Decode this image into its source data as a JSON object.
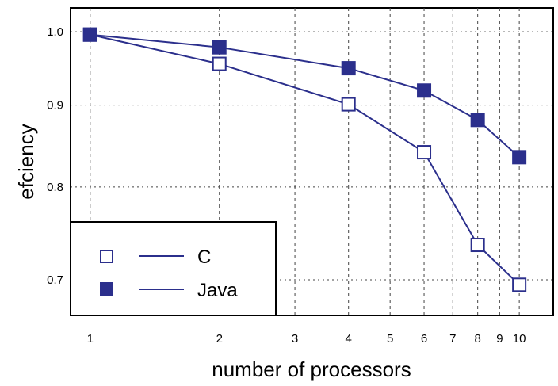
{
  "chart_data": {
    "type": "line",
    "xlabel": "number of processors",
    "ylabel": "efciency",
    "x_scale": "log",
    "y_scale": "log",
    "xlim": [
      0.9,
      12
    ],
    "ylim": [
      0.665,
      1.035
    ],
    "xticks": [
      1,
      2,
      3,
      4,
      5,
      6,
      7,
      8,
      9,
      10
    ],
    "xtick_labels": [
      "1",
      "2",
      "3",
      "4",
      "5",
      "6",
      "7",
      "8",
      "9",
      "10"
    ],
    "yticks": [
      0.7,
      0.8,
      0.9,
      1.0
    ],
    "ytick_labels": [
      "0.7",
      "0.8",
      "0.9",
      "1.0"
    ],
    "grid": true,
    "legend_position": "bottom-left",
    "series": [
      {
        "name": "C",
        "marker": "open-square",
        "color": "#2b2f8c",
        "x": [
          1,
          2,
          4,
          6,
          8,
          10
        ],
        "y": [
          0.996,
          0.955,
          0.901,
          0.841,
          0.736,
          0.695
        ]
      },
      {
        "name": "Java",
        "marker": "filled-square",
        "color": "#2b2f8c",
        "x": [
          1,
          2,
          4,
          6,
          8,
          10
        ],
        "y": [
          0.996,
          0.978,
          0.949,
          0.919,
          0.881,
          0.835
        ]
      }
    ]
  }
}
